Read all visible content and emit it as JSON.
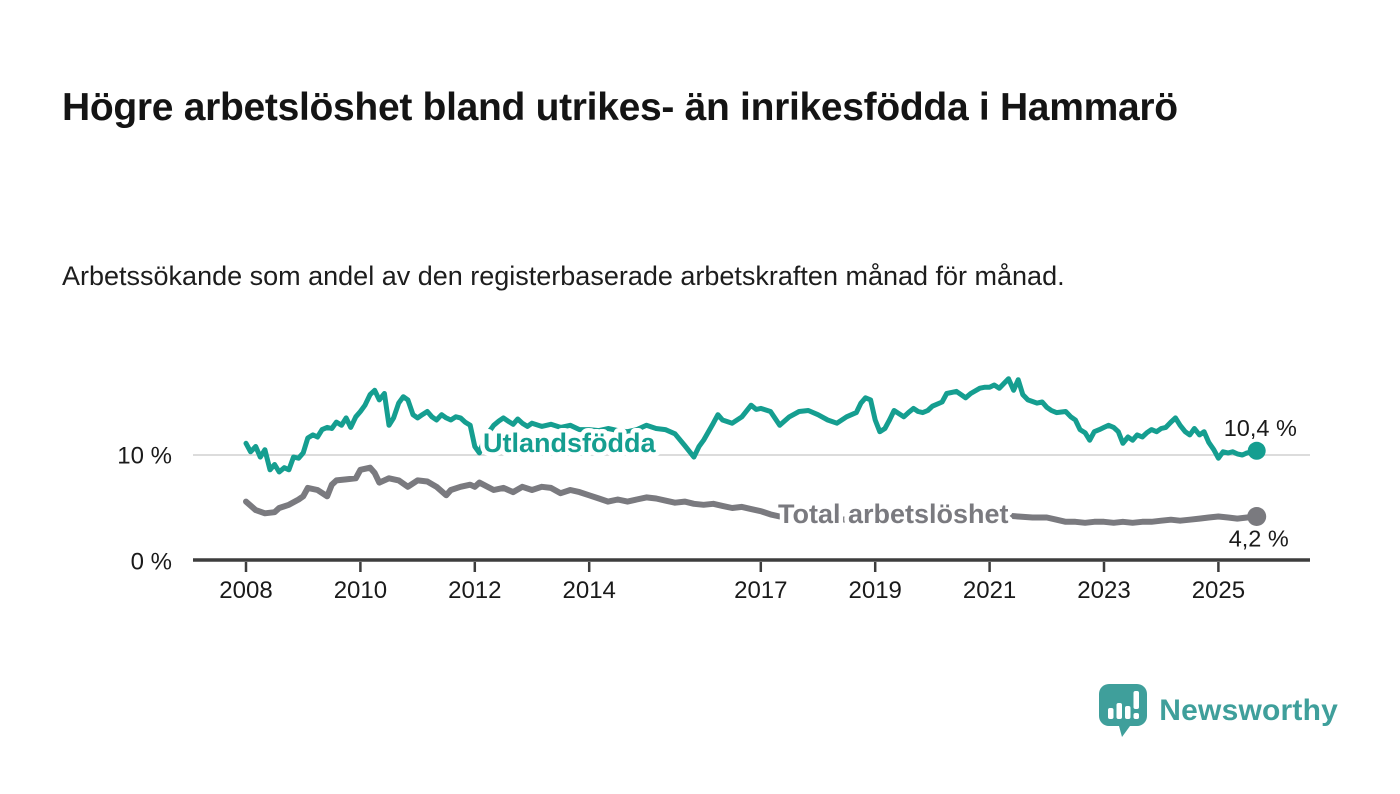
{
  "header": {
    "title": "Högre arbetslöshet bland utrikes- än inrikesfödda i Hammarö",
    "subtitle": "Arbetssökande som andel av den registerbaserade arbetskraften månad för månad."
  },
  "colors": {
    "series_utlandsfodda": "#159e90",
    "series_total": "#7a7a7f",
    "axis": "#3d3d3d",
    "gridline": "#dcdcdc",
    "text": "#1a1a1a",
    "logo_teal": "#3f9f9b",
    "background": "#ffffff"
  },
  "chart_data": {
    "type": "line",
    "x_unit": "year (decimal = month within year)",
    "y_unit": "percent",
    "ylim": [
      0,
      17.5
    ],
    "grid": "single horizontal gridline at 10 %",
    "legend_position": "inline labels on lines",
    "yticks": [
      {
        "value": 0,
        "label": "0 %"
      },
      {
        "value": 10,
        "label": "10 %"
      }
    ],
    "xticks": [
      {
        "year": 2008,
        "label": "2008"
      },
      {
        "year": 2010,
        "label": "2010"
      },
      {
        "year": 2012,
        "label": "2012"
      },
      {
        "year": 2014,
        "label": "2014"
      },
      {
        "year": 2017,
        "label": "2017"
      },
      {
        "year": 2019,
        "label": "2019"
      },
      {
        "year": 2021,
        "label": "2021"
      },
      {
        "year": 2023,
        "label": "2023"
      },
      {
        "year": 2025,
        "label": "2025"
      }
    ],
    "series": [
      {
        "name": "Utlandsfödda",
        "label": "Utlandsfödda",
        "color": "#159e90",
        "end_value": 10.4,
        "end_label": "10,4 %",
        "points": [
          [
            2008.0,
            11.1
          ],
          [
            2008.08,
            10.3
          ],
          [
            2008.17,
            10.8
          ],
          [
            2008.25,
            9.8
          ],
          [
            2008.33,
            10.5
          ],
          [
            2008.42,
            8.6
          ],
          [
            2008.5,
            9.1
          ],
          [
            2008.58,
            8.4
          ],
          [
            2008.67,
            8.8
          ],
          [
            2008.75,
            8.6
          ],
          [
            2008.83,
            9.8
          ],
          [
            2008.92,
            9.7
          ],
          [
            2009.0,
            10.2
          ],
          [
            2009.08,
            11.6
          ],
          [
            2009.17,
            11.9
          ],
          [
            2009.25,
            11.7
          ],
          [
            2009.33,
            12.4
          ],
          [
            2009.42,
            12.6
          ],
          [
            2009.5,
            12.5
          ],
          [
            2009.58,
            13.1
          ],
          [
            2009.67,
            12.8
          ],
          [
            2009.75,
            13.5
          ],
          [
            2009.83,
            12.6
          ],
          [
            2009.92,
            13.6
          ],
          [
            2010.0,
            14.1
          ],
          [
            2010.08,
            14.7
          ],
          [
            2010.17,
            15.7
          ],
          [
            2010.25,
            16.1
          ],
          [
            2010.33,
            15.2
          ],
          [
            2010.42,
            15.8
          ],
          [
            2010.5,
            12.8
          ],
          [
            2010.58,
            13.5
          ],
          [
            2010.67,
            14.9
          ],
          [
            2010.75,
            15.5
          ],
          [
            2010.83,
            15.2
          ],
          [
            2010.92,
            13.8
          ],
          [
            2011.0,
            13.5
          ],
          [
            2011.08,
            13.8
          ],
          [
            2011.17,
            14.1
          ],
          [
            2011.25,
            13.6
          ],
          [
            2011.33,
            13.3
          ],
          [
            2011.42,
            13.8
          ],
          [
            2011.5,
            13.5
          ],
          [
            2011.58,
            13.3
          ],
          [
            2011.67,
            13.6
          ],
          [
            2011.75,
            13.5
          ],
          [
            2011.83,
            13.1
          ],
          [
            2011.92,
            12.8
          ],
          [
            2012.0,
            10.8
          ],
          [
            2012.08,
            10.2
          ],
          [
            2012.17,
            11.5
          ],
          [
            2012.25,
            12.2
          ],
          [
            2012.33,
            12.8
          ],
          [
            2012.42,
            13.2
          ],
          [
            2012.5,
            13.5
          ],
          [
            2012.58,
            13.2
          ],
          [
            2012.67,
            12.9
          ],
          [
            2012.75,
            13.4
          ],
          [
            2012.83,
            13.0
          ],
          [
            2012.92,
            12.7
          ],
          [
            2013.0,
            13.0
          ],
          [
            2013.17,
            12.7
          ],
          [
            2013.33,
            12.9
          ],
          [
            2013.5,
            12.6
          ],
          [
            2013.67,
            12.8
          ],
          [
            2013.83,
            12.4
          ],
          [
            2014.0,
            12.4
          ],
          [
            2014.17,
            12.3
          ],
          [
            2014.33,
            12.5
          ],
          [
            2014.5,
            12.3
          ],
          [
            2014.67,
            12.2
          ],
          [
            2014.83,
            12.4
          ],
          [
            2015.0,
            12.8
          ],
          [
            2015.17,
            12.5
          ],
          [
            2015.33,
            12.4
          ],
          [
            2015.5,
            12.0
          ],
          [
            2015.67,
            10.9
          ],
          [
            2015.83,
            9.8
          ],
          [
            2015.92,
            10.8
          ],
          [
            2016.0,
            11.4
          ],
          [
            2016.17,
            13.0
          ],
          [
            2016.25,
            13.8
          ],
          [
            2016.33,
            13.3
          ],
          [
            2016.5,
            13.0
          ],
          [
            2016.67,
            13.6
          ],
          [
            2016.83,
            14.7
          ],
          [
            2016.92,
            14.3
          ],
          [
            2017.0,
            14.4
          ],
          [
            2017.17,
            14.1
          ],
          [
            2017.33,
            12.8
          ],
          [
            2017.5,
            13.6
          ],
          [
            2017.67,
            14.1
          ],
          [
            2017.83,
            14.2
          ],
          [
            2018.0,
            13.8
          ],
          [
            2018.17,
            13.3
          ],
          [
            2018.33,
            13.0
          ],
          [
            2018.5,
            13.6
          ],
          [
            2018.67,
            14.0
          ],
          [
            2018.75,
            14.9
          ],
          [
            2018.83,
            15.4
          ],
          [
            2018.92,
            15.2
          ],
          [
            2019.0,
            13.3
          ],
          [
            2019.08,
            12.2
          ],
          [
            2019.17,
            12.5
          ],
          [
            2019.25,
            13.3
          ],
          [
            2019.33,
            14.2
          ],
          [
            2019.5,
            13.6
          ],
          [
            2019.58,
            14.0
          ],
          [
            2019.67,
            14.4
          ],
          [
            2019.75,
            14.1
          ],
          [
            2019.83,
            14.0
          ],
          [
            2019.92,
            14.2
          ],
          [
            2020.0,
            14.6
          ],
          [
            2020.17,
            15.0
          ],
          [
            2020.25,
            15.8
          ],
          [
            2020.42,
            16.0
          ],
          [
            2020.5,
            15.7
          ],
          [
            2020.58,
            15.4
          ],
          [
            2020.67,
            15.8
          ],
          [
            2020.83,
            16.3
          ],
          [
            2020.92,
            16.4
          ],
          [
            2021.0,
            16.4
          ],
          [
            2021.08,
            16.6
          ],
          [
            2021.17,
            16.3
          ],
          [
            2021.33,
            17.2
          ],
          [
            2021.42,
            16.1
          ],
          [
            2021.5,
            17.1
          ],
          [
            2021.58,
            15.7
          ],
          [
            2021.67,
            15.2
          ],
          [
            2021.83,
            14.9
          ],
          [
            2021.92,
            15.0
          ],
          [
            2022.0,
            14.5
          ],
          [
            2022.08,
            14.2
          ],
          [
            2022.17,
            14.0
          ],
          [
            2022.33,
            14.1
          ],
          [
            2022.42,
            13.6
          ],
          [
            2022.5,
            13.3
          ],
          [
            2022.58,
            12.4
          ],
          [
            2022.67,
            12.1
          ],
          [
            2022.75,
            11.4
          ],
          [
            2022.83,
            12.2
          ],
          [
            2022.92,
            12.4
          ],
          [
            2023.0,
            12.6
          ],
          [
            2023.08,
            12.8
          ],
          [
            2023.17,
            12.6
          ],
          [
            2023.25,
            12.2
          ],
          [
            2023.33,
            11.1
          ],
          [
            2023.42,
            11.7
          ],
          [
            2023.5,
            11.4
          ],
          [
            2023.58,
            11.9
          ],
          [
            2023.67,
            11.7
          ],
          [
            2023.75,
            12.1
          ],
          [
            2023.83,
            12.4
          ],
          [
            2023.92,
            12.2
          ],
          [
            2024.0,
            12.5
          ],
          [
            2024.08,
            12.6
          ],
          [
            2024.17,
            13.1
          ],
          [
            2024.25,
            13.5
          ],
          [
            2024.33,
            12.8
          ],
          [
            2024.42,
            12.2
          ],
          [
            2024.5,
            11.9
          ],
          [
            2024.58,
            12.5
          ],
          [
            2024.67,
            11.9
          ],
          [
            2024.75,
            12.2
          ],
          [
            2024.83,
            11.2
          ],
          [
            2024.92,
            10.5
          ],
          [
            2025.0,
            9.7
          ],
          [
            2025.08,
            10.3
          ],
          [
            2025.17,
            10.2
          ],
          [
            2025.25,
            10.3
          ],
          [
            2025.33,
            10.1
          ],
          [
            2025.42,
            10.0
          ],
          [
            2025.5,
            10.2
          ],
          [
            2025.67,
            10.4
          ]
        ]
      },
      {
        "name": "Total arbetslöshet",
        "label": "Total arbetslöshet",
        "color": "#7a7a7f",
        "end_value": 4.2,
        "end_label": "4,2 %",
        "points": [
          [
            2008.0,
            5.6
          ],
          [
            2008.17,
            4.8
          ],
          [
            2008.33,
            4.5
          ],
          [
            2008.5,
            4.6
          ],
          [
            2008.58,
            5.0
          ],
          [
            2008.75,
            5.3
          ],
          [
            2008.92,
            5.8
          ],
          [
            2009.0,
            6.1
          ],
          [
            2009.08,
            6.9
          ],
          [
            2009.25,
            6.7
          ],
          [
            2009.42,
            6.1
          ],
          [
            2009.5,
            7.2
          ],
          [
            2009.58,
            7.6
          ],
          [
            2009.75,
            7.7
          ],
          [
            2009.92,
            7.8
          ],
          [
            2010.0,
            8.6
          ],
          [
            2010.17,
            8.8
          ],
          [
            2010.25,
            8.3
          ],
          [
            2010.33,
            7.4
          ],
          [
            2010.5,
            7.8
          ],
          [
            2010.67,
            7.6
          ],
          [
            2010.83,
            7.0
          ],
          [
            2011.0,
            7.6
          ],
          [
            2011.17,
            7.5
          ],
          [
            2011.33,
            7.0
          ],
          [
            2011.5,
            6.2
          ],
          [
            2011.58,
            6.7
          ],
          [
            2011.75,
            7.0
          ],
          [
            2011.92,
            7.2
          ],
          [
            2012.0,
            7.0
          ],
          [
            2012.08,
            7.4
          ],
          [
            2012.33,
            6.7
          ],
          [
            2012.5,
            6.9
          ],
          [
            2012.67,
            6.5
          ],
          [
            2012.83,
            7.0
          ],
          [
            2013.0,
            6.7
          ],
          [
            2013.17,
            7.0
          ],
          [
            2013.33,
            6.9
          ],
          [
            2013.5,
            6.4
          ],
          [
            2013.67,
            6.7
          ],
          [
            2013.83,
            6.5
          ],
          [
            2014.0,
            6.2
          ],
          [
            2014.17,
            5.9
          ],
          [
            2014.33,
            5.6
          ],
          [
            2014.5,
            5.8
          ],
          [
            2014.67,
            5.6
          ],
          [
            2014.83,
            5.8
          ],
          [
            2015.0,
            6.0
          ],
          [
            2015.17,
            5.9
          ],
          [
            2015.33,
            5.7
          ],
          [
            2015.5,
            5.5
          ],
          [
            2015.67,
            5.6
          ],
          [
            2015.83,
            5.4
          ],
          [
            2016.0,
            5.3
          ],
          [
            2016.17,
            5.4
          ],
          [
            2016.33,
            5.2
          ],
          [
            2016.5,
            5.0
          ],
          [
            2016.67,
            5.1
          ],
          [
            2016.83,
            4.9
          ],
          [
            2017.0,
            4.7
          ],
          [
            2017.17,
            4.4
          ],
          [
            2017.33,
            4.2
          ],
          [
            2017.5,
            4.3
          ],
          [
            2017.67,
            4.3
          ],
          [
            2017.83,
            4.2
          ],
          [
            2018.0,
            4.1
          ],
          [
            2018.25,
            4.0
          ],
          [
            2018.5,
            3.9
          ],
          [
            2018.75,
            3.9
          ],
          [
            2019.0,
            4.0
          ],
          [
            2019.25,
            4.0
          ],
          [
            2019.5,
            4.1
          ],
          [
            2019.75,
            4.2
          ],
          [
            2020.0,
            4.3
          ],
          [
            2020.25,
            4.5
          ],
          [
            2020.5,
            4.6
          ],
          [
            2020.75,
            4.5
          ],
          [
            2021.0,
            4.4
          ],
          [
            2021.25,
            4.3
          ],
          [
            2021.5,
            4.2
          ],
          [
            2021.75,
            4.1
          ],
          [
            2022.0,
            4.1
          ],
          [
            2022.17,
            3.9
          ],
          [
            2022.33,
            3.7
          ],
          [
            2022.5,
            3.7
          ],
          [
            2022.67,
            3.6
          ],
          [
            2022.83,
            3.7
          ],
          [
            2023.0,
            3.7
          ],
          [
            2023.17,
            3.6
          ],
          [
            2023.33,
            3.7
          ],
          [
            2023.5,
            3.6
          ],
          [
            2023.67,
            3.7
          ],
          [
            2023.83,
            3.7
          ],
          [
            2024.0,
            3.8
          ],
          [
            2024.17,
            3.9
          ],
          [
            2024.33,
            3.8
          ],
          [
            2024.5,
            3.9
          ],
          [
            2024.67,
            4.0
          ],
          [
            2024.83,
            4.1
          ],
          [
            2025.0,
            4.2
          ],
          [
            2025.17,
            4.1
          ],
          [
            2025.33,
            4.0
          ],
          [
            2025.5,
            4.1
          ],
          [
            2025.67,
            4.2
          ]
        ]
      }
    ]
  },
  "branding": {
    "logo_text": "Newsworthy",
    "logo_icon": "newsworthy-speech-bubble-bar-chart-icon"
  }
}
